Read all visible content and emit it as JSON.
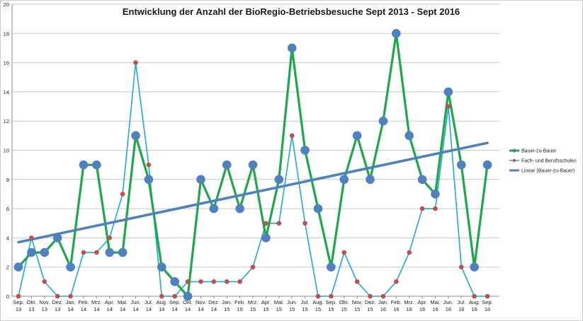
{
  "chart_data": {
    "type": "line",
    "title": "Entwicklung der Anzahl der BioRegio-Betriebsbesuche  Sept 2013 - Sept 2016",
    "xlabel": "",
    "ylabel": "",
    "ylim": [
      0,
      20
    ],
    "yticks": [
      "0",
      "2",
      "4",
      "6",
      "8",
      "10",
      "12",
      "14",
      "16",
      "18",
      "20"
    ],
    "grid": true,
    "legend_position": "right",
    "categories": [
      {
        "m": "Sep.",
        "y": "13"
      },
      {
        "m": "Okt.",
        "y": "13"
      },
      {
        "m": "Nov.",
        "y": "13"
      },
      {
        "m": "Dez.",
        "y": "13"
      },
      {
        "m": "Jan.",
        "y": "14"
      },
      {
        "m": "Feb.",
        "y": "14"
      },
      {
        "m": "Mrz.",
        "y": "14"
      },
      {
        "m": "Apr.",
        "y": "14"
      },
      {
        "m": "Mai.",
        "y": "14"
      },
      {
        "m": "Jun.",
        "y": "14"
      },
      {
        "m": "Jul.",
        "y": "14"
      },
      {
        "m": "Aug.",
        "y": "14"
      },
      {
        "m": "Sep.",
        "y": "14"
      },
      {
        "m": "Okt.",
        "y": "14"
      },
      {
        "m": "Nov.",
        "y": "14"
      },
      {
        "m": "Dez.",
        "y": "14"
      },
      {
        "m": "Jan.",
        "y": "15"
      },
      {
        "m": "Feb.",
        "y": "15"
      },
      {
        "m": "Mrz.",
        "y": "15"
      },
      {
        "m": "Apr.",
        "y": "15"
      },
      {
        "m": "Mai.",
        "y": "15"
      },
      {
        "m": "Jun.",
        "y": "15"
      },
      {
        "m": "Jul.",
        "y": "15"
      },
      {
        "m": "Aug.",
        "y": "15"
      },
      {
        "m": "Sep.",
        "y": "15"
      },
      {
        "m": "Okt.",
        "y": "15"
      },
      {
        "m": "Nov.",
        "y": "15"
      },
      {
        "m": "Dez.",
        "y": "15"
      },
      {
        "m": "Jan.",
        "y": "16"
      },
      {
        "m": "Feb.",
        "y": "16"
      },
      {
        "m": "Mrz.",
        "y": "16"
      },
      {
        "m": "Apr.",
        "y": "16"
      },
      {
        "m": "Mai.",
        "y": "16"
      },
      {
        "m": "Jun.",
        "y": "16"
      },
      {
        "m": "Jul.",
        "y": "16"
      },
      {
        "m": "Aug.",
        "y": "16"
      },
      {
        "m": "Sep.",
        "y": "16"
      }
    ],
    "series": [
      {
        "name": "Bauer-zu-Bauer",
        "color": "#1ea84a",
        "marker_color": "#4f81bd",
        "values": [
          2,
          3,
          3,
          4,
          2,
          9,
          9,
          3,
          3,
          11,
          8,
          2,
          1,
          0,
          8,
          6,
          9,
          6,
          9,
          4,
          8,
          17,
          10,
          6,
          2,
          8,
          11,
          8,
          12,
          18,
          11,
          8,
          7,
          14,
          9,
          2,
          9
        ]
      },
      {
        "name": "Fach- und Berufsschulen",
        "color": "#1eaadc",
        "marker_color": "#c0504d",
        "values": [
          0,
          4,
          1,
          0,
          0,
          3,
          3,
          4,
          7,
          16,
          9,
          0,
          0,
          1,
          1,
          1,
          1,
          1,
          2,
          5,
          5,
          11,
          5,
          0,
          0,
          3,
          1,
          0,
          0,
          1,
          3,
          6,
          6,
          13,
          2,
          0,
          0
        ]
      }
    ],
    "trendline": {
      "name": "Linear (Bauer-zu-Bauer)",
      "color": "#4f81bd",
      "start": 3.7,
      "end": 10.5
    }
  }
}
